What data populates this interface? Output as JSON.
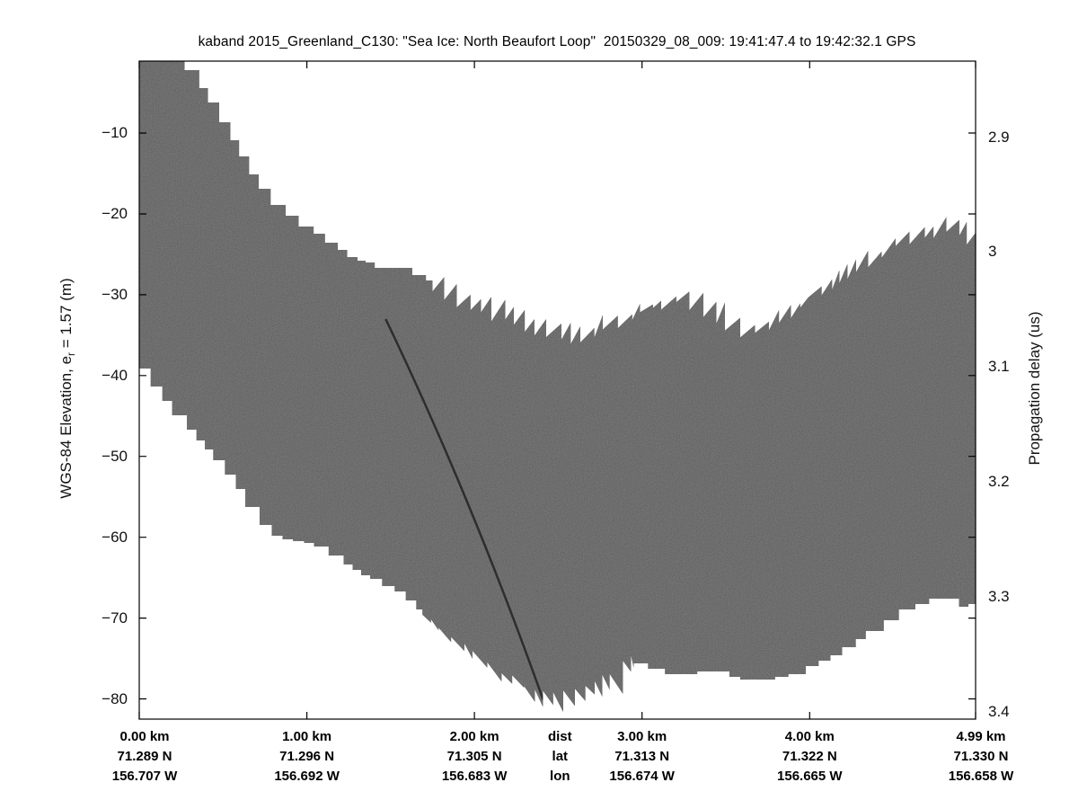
{
  "figure": {
    "title": "kaband 2015_Greenland_C130: \"Sea Ice: North Beaufort Loop\"  20150329_08_009: 19:41:47.4 to 19:42:32.1 GPS"
  },
  "axes": {
    "left": {
      "label_prefix": "WGS-84 Elevation, e",
      "label_sub": "r",
      "label_suffix": " = 1.57 (m)",
      "tick_values": [
        -10,
        -20,
        -30,
        -40,
        -50,
        -60,
        -70,
        -80
      ],
      "tick_labels": [
        "−10",
        "−20",
        "−30",
        "−40",
        "−50",
        "−60",
        "−70",
        "−80"
      ]
    },
    "right": {
      "label": "Propagation delay (us)",
      "tick_values": [
        2.9,
        3.0,
        3.1,
        3.2,
        3.3,
        3.4
      ],
      "tick_labels": [
        "2.9",
        "3",
        "3.1",
        "3.2",
        "3.3",
        "3.4"
      ]
    },
    "bottom": {
      "header": {
        "dist": "dist",
        "lat": "lat",
        "lon": "lon",
        "x_km": 2.51
      },
      "columns": [
        {
          "km": 0.0,
          "dist": "0.00 km",
          "lat": "71.289 N",
          "lon": "156.707 W"
        },
        {
          "km": 1.0,
          "dist": "1.00 km",
          "lat": "71.296 N",
          "lon": "156.692 W"
        },
        {
          "km": 2.0,
          "dist": "2.00 km",
          "lat": "71.305 N",
          "lon": "156.683 W"
        },
        {
          "km": 3.0,
          "dist": "3.00 km",
          "lat": "71.313 N",
          "lon": "156.674 W"
        },
        {
          "km": 4.0,
          "dist": "4.00 km",
          "lat": "71.322 N",
          "lon": "156.665 W"
        },
        {
          "km": 4.99,
          "dist": "4.99 km",
          "lat": "71.330 N",
          "lon": "156.658 W"
        }
      ]
    }
  },
  "chart_data": {
    "type": "area",
    "title": "kaband 2015_Greenland_C130: \"Sea Ice: North Beaufort Loop\"  20150329_08_009: 19:41:47.4 to 19:42:32.1 GPS",
    "xlabel": "dist (km), lat (N), lon (W)",
    "ylabel_left": "WGS-84 Elevation, er = 1.57 (m)",
    "ylabel_right": "Propagation delay (us)",
    "xlim_km": [
      0,
      4.99
    ],
    "ylim_elevation_m": [
      -82.5,
      -1.1
    ],
    "ylim_delay_us": [
      2.834,
      3.406
    ],
    "x_tick_km": [
      0,
      1.0,
      2.0,
      3.0,
      4.0,
      4.99
    ],
    "band_color": "#262626",
    "background_color": "#ffffff",
    "grid": false,
    "legend": "none",
    "upper_boundary_km_elev": [
      [
        0.0,
        -1.1
      ],
      [
        0.27,
        -1.1
      ],
      [
        0.31,
        -2.2
      ],
      [
        0.36,
        -3.8
      ],
      [
        0.41,
        -5.3
      ],
      [
        0.48,
        -7.3
      ],
      [
        0.54,
        -9.8
      ],
      [
        0.61,
        -12.2
      ],
      [
        0.68,
        -14.9
      ],
      [
        0.76,
        -17.3
      ],
      [
        0.84,
        -19.1
      ],
      [
        0.94,
        -20.7
      ],
      [
        1.05,
        -22.2
      ],
      [
        1.16,
        -23.8
      ],
      [
        1.28,
        -25.4
      ],
      [
        1.38,
        -26.1
      ],
      [
        1.46,
        -26.8
      ],
      [
        1.55,
        -26.4
      ],
      [
        1.65,
        -27.2
      ],
      [
        1.74,
        -28.4
      ],
      [
        1.85,
        -29.7
      ],
      [
        1.97,
        -30.9
      ],
      [
        2.09,
        -31.9
      ],
      [
        2.21,
        -32.7
      ],
      [
        2.33,
        -33.8
      ],
      [
        2.47,
        -34.9
      ],
      [
        2.6,
        -35.1
      ],
      [
        2.73,
        -34.4
      ],
      [
        2.87,
        -33.3
      ],
      [
        3.0,
        -31.9
      ],
      [
        3.14,
        -30.9
      ],
      [
        3.24,
        -30.5
      ],
      [
        3.32,
        -31.0
      ],
      [
        3.43,
        -32.4
      ],
      [
        3.54,
        -33.4
      ],
      [
        3.64,
        -34.4
      ],
      [
        3.75,
        -33.6
      ],
      [
        3.86,
        -33.0
      ],
      [
        3.99,
        -30.4
      ],
      [
        4.13,
        -28.6
      ],
      [
        4.26,
        -27.0
      ],
      [
        4.39,
        -25.6
      ],
      [
        4.53,
        -23.8
      ],
      [
        4.64,
        -22.8
      ],
      [
        4.74,
        -22.0
      ],
      [
        4.83,
        -21.6
      ],
      [
        4.9,
        -22.2
      ],
      [
        4.99,
        -23.1
      ]
    ],
    "lower_boundary_km_elev": [
      [
        0.0,
        -38.0
      ],
      [
        0.08,
        -40.7
      ],
      [
        0.16,
        -42.9
      ],
      [
        0.24,
        -44.9
      ],
      [
        0.32,
        -46.9
      ],
      [
        0.4,
        -48.7
      ],
      [
        0.48,
        -50.5
      ],
      [
        0.55,
        -52.5
      ],
      [
        0.62,
        -54.5
      ],
      [
        0.68,
        -56.3
      ],
      [
        0.74,
        -58.1
      ],
      [
        0.8,
        -59.5
      ],
      [
        0.88,
        -60.3
      ],
      [
        0.98,
        -60.5
      ],
      [
        1.07,
        -60.9
      ],
      [
        1.16,
        -62.0
      ],
      [
        1.26,
        -63.5
      ],
      [
        1.36,
        -64.7
      ],
      [
        1.45,
        -65.6
      ],
      [
        1.54,
        -66.5
      ],
      [
        1.63,
        -67.9
      ],
      [
        1.73,
        -70.3
      ],
      [
        1.82,
        -71.6
      ],
      [
        1.91,
        -72.8
      ],
      [
        2.0,
        -74.3
      ],
      [
        2.09,
        -75.8
      ],
      [
        2.18,
        -77.0
      ],
      [
        2.28,
        -78.3
      ],
      [
        2.37,
        -79.4
      ],
      [
        2.47,
        -80.2
      ],
      [
        2.56,
        -79.9
      ],
      [
        2.65,
        -79.1
      ],
      [
        2.75,
        -78.3
      ],
      [
        2.84,
        -77.7
      ],
      [
        2.92,
        -75.9
      ],
      [
        3.01,
        -75.4
      ],
      [
        3.1,
        -76.5
      ],
      [
        3.22,
        -77.0
      ],
      [
        3.32,
        -76.8
      ],
      [
        3.46,
        -76.4
      ],
      [
        3.56,
        -77.2
      ],
      [
        3.67,
        -77.7
      ],
      [
        3.79,
        -77.4
      ],
      [
        3.91,
        -77.2
      ],
      [
        4.03,
        -75.9
      ],
      [
        4.13,
        -75.1
      ],
      [
        4.23,
        -73.6
      ],
      [
        4.34,
        -72.2
      ],
      [
        4.45,
        -71.0
      ],
      [
        4.56,
        -69.3
      ],
      [
        4.66,
        -68.2
      ],
      [
        4.77,
        -67.4
      ],
      [
        4.85,
        -67.6
      ],
      [
        4.9,
        -68.8
      ],
      [
        4.99,
        -67.9
      ]
    ],
    "internal_layer_km_elev": [
      [
        1.47,
        -33.0
      ],
      [
        1.96,
        -55.8
      ],
      [
        2.41,
        -80.1
      ]
    ]
  }
}
